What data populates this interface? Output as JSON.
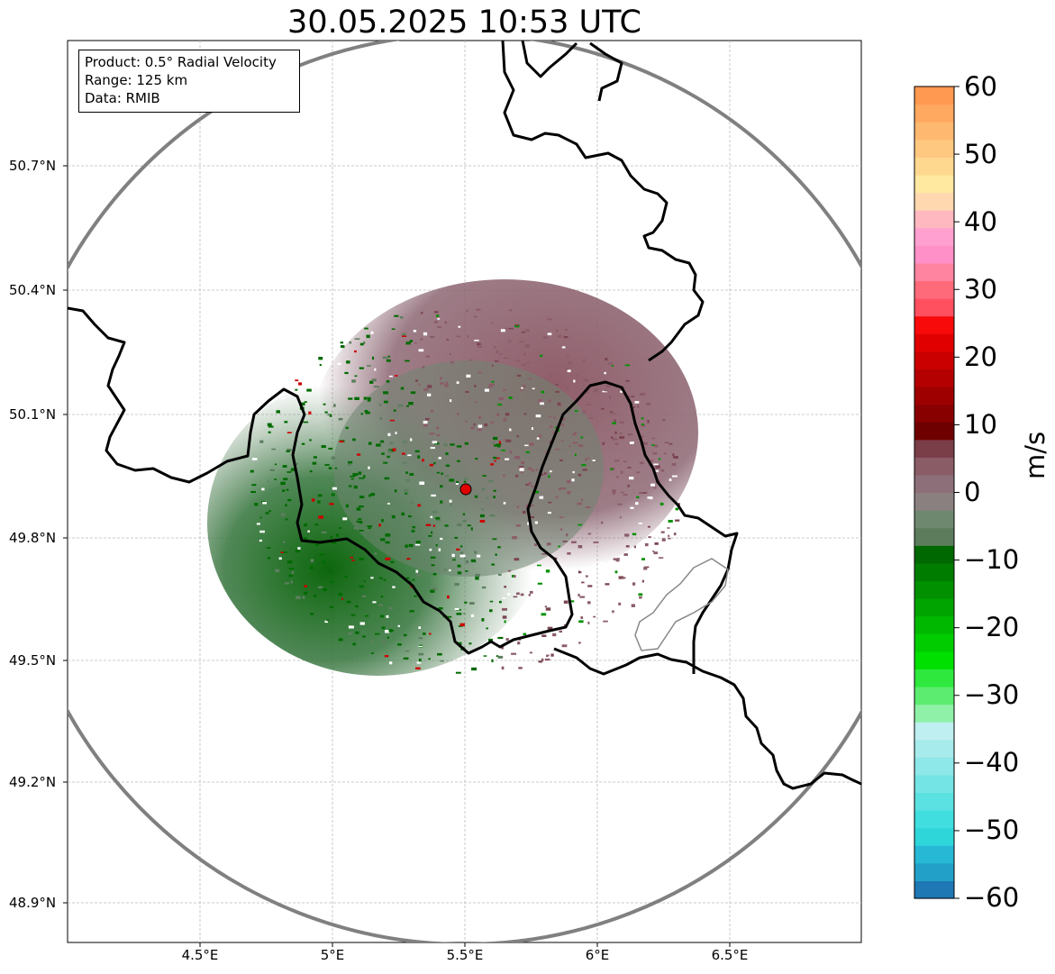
{
  "title": "30.05.2025 10:53 UTC",
  "info": {
    "product": "Product: 0.5° Radial Velocity",
    "range": "Range: 125 km",
    "data": "Data: RMIB"
  },
  "axes": {
    "lat_ticks": [
      "50.7°N",
      "50.4°N",
      "50.1°N",
      "49.8°N",
      "49.5°N",
      "49.2°N",
      "48.9°N"
    ],
    "lon_ticks": [
      "4.5°E",
      "5°E",
      "5.5°E",
      "6°E",
      "6.5°E"
    ]
  },
  "colorbar": {
    "unit": "m/s",
    "ticks": [
      "60",
      "50",
      "40",
      "30",
      "20",
      "10",
      "0",
      "−10",
      "−20",
      "−30",
      "−40",
      "−50",
      "−60"
    ],
    "range": [
      -60,
      60
    ],
    "colors": [
      "#1f77b4",
      "#22a0c8",
      "#27b8d6",
      "#2ed6da",
      "#40dede",
      "#5be1e1",
      "#74e4e4",
      "#8ee7e8",
      "#a7ebec",
      "#bfeff0",
      "#8ff0a8",
      "#5cec70",
      "#2ee83e",
      "#00e000",
      "#00cc00",
      "#00b800",
      "#00a400",
      "#009000",
      "#007c00",
      "#006800",
      "#5c7c5c",
      "#6e8870",
      "#8a8080",
      "#8c6f78",
      "#8a5c66",
      "#7a3e48",
      "#6e0000",
      "#880000",
      "#9e0000",
      "#b40000",
      "#ca0000",
      "#e00000",
      "#f80a0a",
      "#ff5060",
      "#ff6a7a",
      "#ff84a0",
      "#ff90c8",
      "#ffa0d0",
      "#ffb8c0",
      "#ffd8b0",
      "#ffe8a0",
      "#ffd890",
      "#ffc880",
      "#ffb870",
      "#ffa860",
      "#ff9850"
    ]
  },
  "radar": {
    "site_marker": {
      "lat": 49.914,
      "lon": 5.505
    },
    "range_km": 125
  }
}
